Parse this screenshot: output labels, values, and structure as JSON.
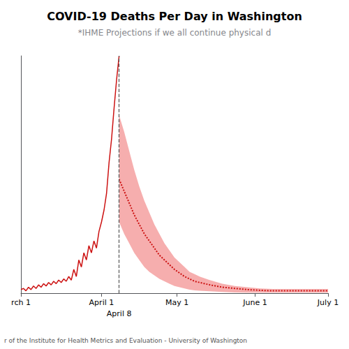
{
  "chart_data": {
    "type": "line",
    "title": "COVID-19 Deaths Per Day in Washington",
    "subtitle": "*IHME Projections if we all continue physical d",
    "footer": "r of the Institute for Health Metrics and Evaluation - University of Washington",
    "xlim": [
      0,
      122
    ],
    "xticks": [
      {
        "value": 0,
        "label": "rch 1"
      },
      {
        "value": 32,
        "label": "April 1"
      },
      {
        "value": 62,
        "label": "May 1"
      },
      {
        "value": 93,
        "label": "June 1"
      },
      {
        "value": 122,
        "label": "July 1"
      }
    ],
    "ylim": [
      0,
      100
    ],
    "yticks": [],
    "tick_labels": "x",
    "grid": false,
    "annotations": [
      {
        "text": "April 8",
        "x": 39,
        "color": "#555555",
        "line_style": "dashed"
      }
    ],
    "series": [
      {
        "type": "band",
        "color": "#f5a0a0",
        "x": [
          39,
          41,
          43,
          45,
          47,
          49,
          51,
          53,
          55,
          57,
          59,
          61,
          63,
          65,
          67,
          69,
          71,
          75,
          80,
          85,
          90,
          95,
          100,
          105,
          110,
          115,
          120,
          122
        ],
        "upper": [
          75,
          68,
          60,
          52,
          45,
          39,
          34,
          29,
          25,
          21,
          18,
          15,
          13,
          11,
          9,
          8,
          7,
          5.5,
          4,
          3,
          2.5,
          2,
          1.8,
          1.8,
          1.8,
          1.8,
          1.8,
          1.8
        ],
        "lower": [
          30,
          25,
          21,
          17,
          14,
          11,
          9,
          7.5,
          6,
          5,
          4,
          3,
          2.5,
          2,
          1.5,
          1.2,
          1,
          0.8,
          0.5,
          0.3,
          0.2,
          0.2,
          0.2,
          0.2,
          0.2,
          0.2,
          0.2,
          0.2
        ]
      },
      {
        "type": "line",
        "color": "#cc1111",
        "line_style": "solid",
        "x": [
          0,
          1,
          2,
          3,
          4,
          5,
          6,
          7,
          8,
          9,
          10,
          11,
          12,
          13,
          14,
          15,
          16,
          17,
          18,
          19,
          20,
          21,
          22,
          23,
          24,
          25,
          26,
          27,
          28,
          29,
          30,
          31,
          32,
          33,
          34,
          35,
          36,
          37,
          38,
          39
        ],
        "values": [
          1.5,
          2,
          1,
          2.5,
          1.5,
          3,
          2,
          3.5,
          2.5,
          4,
          3,
          4.5,
          3.5,
          5,
          4,
          5.5,
          4.5,
          6,
          5,
          7,
          5.5,
          10,
          7,
          14,
          11,
          17,
          14,
          20,
          17,
          22,
          19,
          26,
          30,
          35,
          42,
          55,
          65,
          78,
          90,
          100
        ]
      },
      {
        "type": "line",
        "color": "#cc1111",
        "line_style": "dotted",
        "x": [
          39,
          41,
          43,
          45,
          47,
          49,
          51,
          53,
          55,
          57,
          59,
          61,
          63,
          65,
          67,
          69,
          71,
          75,
          80,
          85,
          90,
          95,
          100,
          105,
          110,
          115,
          120,
          122
        ],
        "values": [
          48,
          43,
          38,
          33,
          29,
          25,
          22,
          19,
          16,
          14,
          12,
          10,
          8.5,
          7,
          6,
          5,
          4.5,
          3.5,
          2.5,
          2,
          1.5,
          1.2,
          1,
          1,
          1,
          1,
          1,
          1
        ]
      }
    ]
  }
}
